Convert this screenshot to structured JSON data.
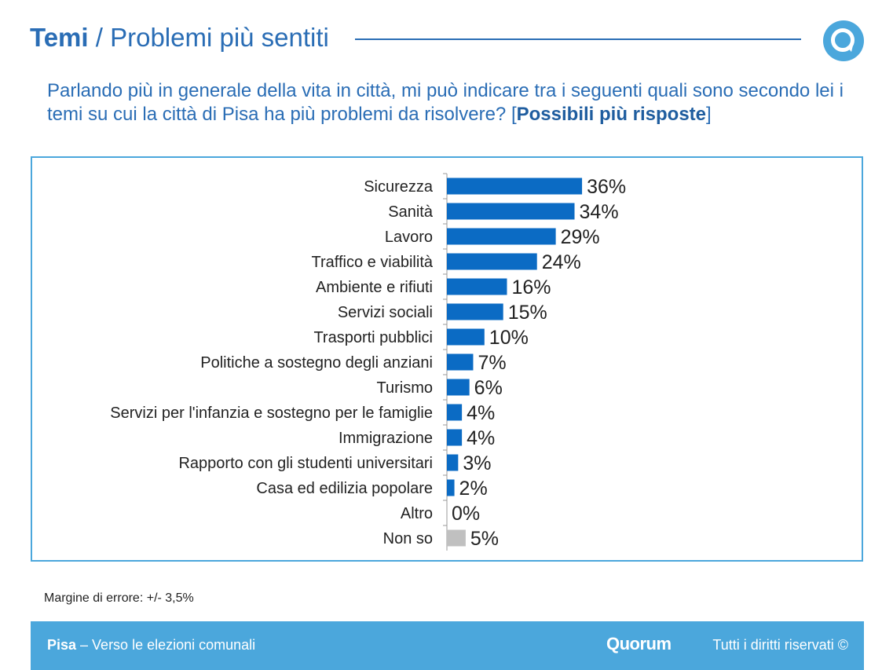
{
  "header": {
    "title_bold": "Temi",
    "title_sep": "/",
    "title_rest": "Problemi più sentiti",
    "logo_icon": "quorum-q-logo-icon",
    "accent_color": "#2a6db5",
    "logo_color": "#4ba7dc"
  },
  "question": {
    "text": "Parlando più in generale della vita in città, mi può indicare tra i seguenti quali sono secondo lei i temi su cui la città di Pisa ha più problemi da risolvere? ",
    "bracket_open": "[",
    "bold_text": "Possibili più risposte",
    "bracket_close": "]"
  },
  "chart_data": {
    "type": "bar",
    "orientation": "horizontal",
    "categories": [
      "Sicurezza",
      "Sanità",
      "Lavoro",
      "Traffico e viabilità",
      "Ambiente e rifiuti",
      "Servizi sociali",
      "Trasporti pubblici",
      "Politiche a sostegno degli anziani",
      "Turismo",
      "Servizi per l'infanzia e sostegno per le famiglie",
      "Immigrazione",
      "Rapporto con gli studenti universitari",
      "Casa ed edilizia popolare",
      "Altro",
      "Non so"
    ],
    "values": [
      36,
      34,
      29,
      24,
      16,
      15,
      10,
      7,
      6,
      4,
      4,
      3,
      2,
      0,
      5
    ],
    "value_labels": [
      "36%",
      "34%",
      "29%",
      "24%",
      "16%",
      "15%",
      "10%",
      "7%",
      "6%",
      "4%",
      "4%",
      "3%",
      "2%",
      "0%",
      "5%"
    ],
    "colors": [
      "#0b6bc4",
      "#0b6bc4",
      "#0b6bc4",
      "#0b6bc4",
      "#0b6bc4",
      "#0b6bc4",
      "#0b6bc4",
      "#0b6bc4",
      "#0b6bc4",
      "#0b6bc4",
      "#0b6bc4",
      "#0b6bc4",
      "#0b6bc4",
      "#0b6bc4",
      "#c0c0c0"
    ],
    "unit": "%",
    "xlim": [
      0,
      40
    ],
    "grid": false,
    "legend": "none"
  },
  "notes": {
    "margin": "Margine di errore: +/- 3,5%"
  },
  "footer": {
    "city": "Pisa",
    "subtitle": " – Verso le elezioni comunali",
    "brand": "Quorum",
    "rights": "Tutti i diritti riservati ©",
    "background_color": "#4ba7dc"
  }
}
